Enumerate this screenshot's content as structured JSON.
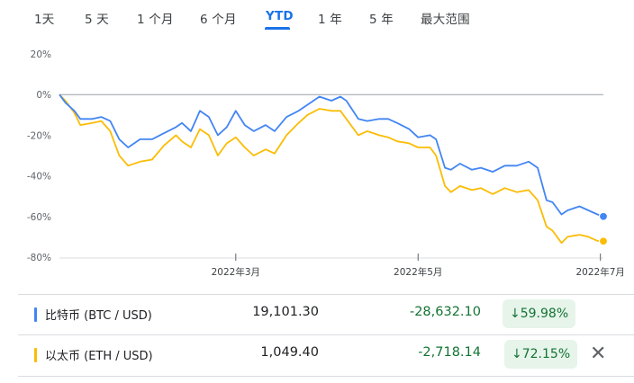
{
  "tabs": [
    {
      "label": "1天",
      "active": false
    },
    {
      "label": "5 天",
      "active": false
    },
    {
      "label": "1 个月",
      "active": false
    },
    {
      "label": "6 个月",
      "active": false
    },
    {
      "label": "YTD",
      "active": true
    },
    {
      "label": "1 年",
      "active": false
    },
    {
      "label": "5 年",
      "active": false
    },
    {
      "label": "最大范围",
      "active": false
    }
  ],
  "chart_data": {
    "type": "line",
    "x_range": [
      "2022-01-01",
      "2022-07-02"
    ],
    "ylim": [
      -80,
      20
    ],
    "y_ticks": [
      20,
      0,
      -20,
      -40,
      -60,
      -80
    ],
    "y_tick_labels": [
      "20%",
      "0%",
      "-20%",
      "-40%",
      "-60%",
      "-80%"
    ],
    "x_ticks": [
      "2022-03-01",
      "2022-05-01",
      "2022-07-01"
    ],
    "x_tick_labels": [
      "2022年3月",
      "2022年5月",
      "2022年7月"
    ],
    "baseline": 0,
    "series": [
      {
        "name": "比特币 (BTC / USD)",
        "color": "#4285f4",
        "points": [
          [
            "2022-01-01",
            0
          ],
          [
            "2022-01-03",
            -4
          ],
          [
            "2022-01-06",
            -8
          ],
          [
            "2022-01-08",
            -12
          ],
          [
            "2022-01-12",
            -12
          ],
          [
            "2022-01-15",
            -11
          ],
          [
            "2022-01-18",
            -13
          ],
          [
            "2022-01-21",
            -22
          ],
          [
            "2022-01-24",
            -26
          ],
          [
            "2022-01-28",
            -22
          ],
          [
            "2022-02-01",
            -22
          ],
          [
            "2022-02-05",
            -19
          ],
          [
            "2022-02-09",
            -16
          ],
          [
            "2022-02-11",
            -14
          ],
          [
            "2022-02-14",
            -18
          ],
          [
            "2022-02-17",
            -8
          ],
          [
            "2022-02-20",
            -11
          ],
          [
            "2022-02-23",
            -20
          ],
          [
            "2022-02-26",
            -16
          ],
          [
            "2022-03-01",
            -8
          ],
          [
            "2022-03-04",
            -15
          ],
          [
            "2022-03-07",
            -18
          ],
          [
            "2022-03-11",
            -15
          ],
          [
            "2022-03-14",
            -18
          ],
          [
            "2022-03-18",
            -11
          ],
          [
            "2022-03-22",
            -8
          ],
          [
            "2022-03-25",
            -5
          ],
          [
            "2022-03-29",
            -1
          ],
          [
            "2022-04-02",
            -3
          ],
          [
            "2022-04-05",
            -1
          ],
          [
            "2022-04-07",
            -3
          ],
          [
            "2022-04-11",
            -12
          ],
          [
            "2022-04-14",
            -13
          ],
          [
            "2022-04-18",
            -12
          ],
          [
            "2022-04-21",
            -12
          ],
          [
            "2022-04-24",
            -14
          ],
          [
            "2022-04-28",
            -17
          ],
          [
            "2022-05-01",
            -21
          ],
          [
            "2022-05-05",
            -20
          ],
          [
            "2022-05-07",
            -22
          ],
          [
            "2022-05-10",
            -36
          ],
          [
            "2022-05-12",
            -37
          ],
          [
            "2022-05-15",
            -34
          ],
          [
            "2022-05-19",
            -37
          ],
          [
            "2022-05-22",
            -36
          ],
          [
            "2022-05-26",
            -38
          ],
          [
            "2022-05-30",
            -35
          ],
          [
            "2022-06-03",
            -35
          ],
          [
            "2022-06-07",
            -33
          ],
          [
            "2022-06-10",
            -36
          ],
          [
            "2022-06-13",
            -52
          ],
          [
            "2022-06-15",
            -53
          ],
          [
            "2022-06-18",
            -59
          ],
          [
            "2022-06-20",
            -57
          ],
          [
            "2022-06-24",
            -55
          ],
          [
            "2022-06-27",
            -57
          ],
          [
            "2022-06-30",
            -59
          ],
          [
            "2022-07-02",
            -59.98
          ]
        ]
      },
      {
        "name": "以太币 (ETH / USD)",
        "color": "#fbbc04",
        "points": [
          [
            "2022-01-01",
            0
          ],
          [
            "2022-01-03",
            -3
          ],
          [
            "2022-01-06",
            -9
          ],
          [
            "2022-01-08",
            -15
          ],
          [
            "2022-01-12",
            -14
          ],
          [
            "2022-01-15",
            -13
          ],
          [
            "2022-01-18",
            -18
          ],
          [
            "2022-01-21",
            -30
          ],
          [
            "2022-01-24",
            -35
          ],
          [
            "2022-01-28",
            -33
          ],
          [
            "2022-02-01",
            -32
          ],
          [
            "2022-02-05",
            -25
          ],
          [
            "2022-02-09",
            -20
          ],
          [
            "2022-02-11",
            -23
          ],
          [
            "2022-02-14",
            -26
          ],
          [
            "2022-02-17",
            -17
          ],
          [
            "2022-02-20",
            -20
          ],
          [
            "2022-02-23",
            -30
          ],
          [
            "2022-02-26",
            -24
          ],
          [
            "2022-03-01",
            -21
          ],
          [
            "2022-03-04",
            -26
          ],
          [
            "2022-03-07",
            -30
          ],
          [
            "2022-03-11",
            -27
          ],
          [
            "2022-03-14",
            -29
          ],
          [
            "2022-03-18",
            -20
          ],
          [
            "2022-03-22",
            -14
          ],
          [
            "2022-03-25",
            -10
          ],
          [
            "2022-03-29",
            -7
          ],
          [
            "2022-04-02",
            -8
          ],
          [
            "2022-04-05",
            -8
          ],
          [
            "2022-04-07",
            -12
          ],
          [
            "2022-04-11",
            -20
          ],
          [
            "2022-04-14",
            -18
          ],
          [
            "2022-04-18",
            -20
          ],
          [
            "2022-04-21",
            -21
          ],
          [
            "2022-04-24",
            -23
          ],
          [
            "2022-04-28",
            -24
          ],
          [
            "2022-05-01",
            -26
          ],
          [
            "2022-05-05",
            -26
          ],
          [
            "2022-05-07",
            -30
          ],
          [
            "2022-05-10",
            -45
          ],
          [
            "2022-05-12",
            -48
          ],
          [
            "2022-05-15",
            -45
          ],
          [
            "2022-05-19",
            -47
          ],
          [
            "2022-05-22",
            -46
          ],
          [
            "2022-05-26",
            -49
          ],
          [
            "2022-05-30",
            -46
          ],
          [
            "2022-06-03",
            -48
          ],
          [
            "2022-06-07",
            -47
          ],
          [
            "2022-06-10",
            -52
          ],
          [
            "2022-06-13",
            -65
          ],
          [
            "2022-06-15",
            -67
          ],
          [
            "2022-06-18",
            -73
          ],
          [
            "2022-06-20",
            -70
          ],
          [
            "2022-06-24",
            -69
          ],
          [
            "2022-06-27",
            -70
          ],
          [
            "2022-06-30",
            -72
          ],
          [
            "2022-07-02",
            -72.15
          ]
        ]
      }
    ],
    "grid": false,
    "legend": "below"
  },
  "legend_rows": [
    {
      "name": "比特币 (BTC / USD)",
      "color": "#4285f4",
      "price": "19,101.30",
      "change": "-28,632.10",
      "percent": "59.98%",
      "arrow": "↓"
    },
    {
      "name": "以太币 (ETH / USD)",
      "color": "#fbbc04",
      "price": "1,049.40",
      "change": "-2,718.14",
      "percent": "72.15%",
      "arrow": "↓"
    }
  ],
  "close_icon": "close-icon"
}
